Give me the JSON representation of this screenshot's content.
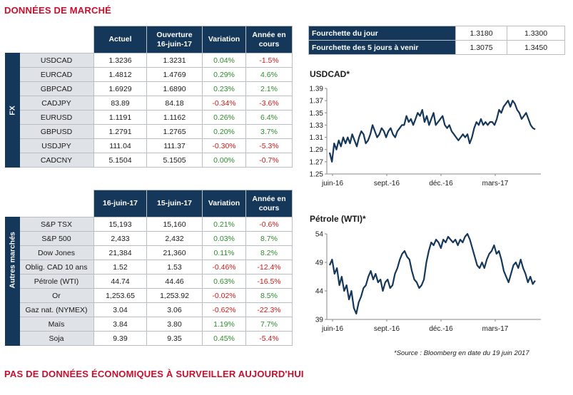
{
  "titles": {
    "top": "DONNÉES DE MARCHÉ",
    "bottom": "PAS DE DONNÉES ÉCONOMIQUES À SURVEILLER AUJOURD'HUI"
  },
  "fx": {
    "side_label": "FX",
    "headers": [
      "Actuel",
      "Ouverture\n16-juin-17",
      "Variation",
      "Année en\ncours"
    ],
    "rows": [
      {
        "name": "USDCAD",
        "actuel": "1.3236",
        "ouverture": "1.3231",
        "variation": "0.04%",
        "annee": "-1.5%"
      },
      {
        "name": "EURCAD",
        "actuel": "1.4812",
        "ouverture": "1.4769",
        "variation": "0.29%",
        "annee": "4.6%"
      },
      {
        "name": "GBPCAD",
        "actuel": "1.6929",
        "ouverture": "1.6890",
        "variation": "0.23%",
        "annee": "2.1%"
      },
      {
        "name": "CADJPY",
        "actuel": "83.89",
        "ouverture": "84.18",
        "variation": "-0.34%",
        "annee": "-3.6%"
      },
      {
        "name": "EURUSD",
        "actuel": "1.1191",
        "ouverture": "1.1162",
        "variation": "0.26%",
        "annee": "6.4%"
      },
      {
        "name": "GBPUSD",
        "actuel": "1.2791",
        "ouverture": "1.2765",
        "variation": "0.20%",
        "annee": "3.7%"
      },
      {
        "name": "USDJPY",
        "actuel": "111.04",
        "ouverture": "111.37",
        "variation": "-0.30%",
        "annee": "-5.3%"
      },
      {
        "name": "CADCNY",
        "actuel": "5.1504",
        "ouverture": "5.1505",
        "variation": "0.00%",
        "annee": "-0.7%"
      }
    ]
  },
  "other": {
    "side_label": "Autres marchés",
    "headers": [
      "16-juin-17",
      "15-juin-17",
      "Variation",
      "Année en\ncours"
    ],
    "rows": [
      {
        "name": "S&P TSX",
        "c1": "15,193",
        "c2": "15,160",
        "variation": "0.21%",
        "annee": "-0.6%"
      },
      {
        "name": "S&P 500",
        "c1": "2,433",
        "c2": "2,432",
        "variation": "0.03%",
        "annee": "8.7%"
      },
      {
        "name": "Dow Jones",
        "c1": "21,384",
        "c2": "21,360",
        "variation": "0.11%",
        "annee": "8.2%"
      },
      {
        "name": "Oblig. CAD 10 ans",
        "c1": "1.52",
        "c2": "1.53",
        "variation": "-0.46%",
        "annee": "-12.4%"
      },
      {
        "name": "Pétrole (WTI)",
        "c1": "44.74",
        "c2": "44.46",
        "variation": "0.63%",
        "annee": "-16.5%"
      },
      {
        "name": "Or",
        "c1": "1,253.65",
        "c2": "1,253.92",
        "variation": "-0.02%",
        "annee": "8.5%"
      },
      {
        "name": "Gaz nat. (NYMEX)",
        "c1": "3.04",
        "c2": "3.06",
        "variation": "-0.62%",
        "annee": "-22.3%"
      },
      {
        "name": "Maïs",
        "c1": "3.84",
        "c2": "3.80",
        "variation": "1.19%",
        "annee": "7.7%"
      },
      {
        "name": "Soja",
        "c1": "9.39",
        "c2": "9.35",
        "variation": "0.45%",
        "annee": "-5.4%"
      }
    ]
  },
  "range": [
    {
      "label": "Fourchette du jour",
      "low": "1.3180",
      "high": "1.3300"
    },
    {
      "label": "Fourchette des 5 jours à venir",
      "low": "1.3075",
      "high": "1.3450"
    }
  ],
  "chart_data": [
    {
      "type": "line",
      "title": "USDCAD*",
      "xlabel": "",
      "ylabel": "",
      "xticks": [
        "juin-16",
        "sept.-16",
        "déc.-16",
        "mars-17"
      ],
      "yticks": [
        1.25,
        1.27,
        1.29,
        1.31,
        1.33,
        1.35,
        1.37,
        1.39
      ],
      "ylim": [
        1.25,
        1.39
      ],
      "color": "#14375a",
      "series": [
        {
          "values": [
            1.285,
            1.27,
            1.3,
            1.29,
            1.305,
            1.295,
            1.31,
            1.3,
            1.31,
            1.3,
            1.315,
            1.305,
            1.295,
            1.31,
            1.32,
            1.315,
            1.3,
            1.305,
            1.315,
            1.33,
            1.32,
            1.31,
            1.315,
            1.325,
            1.32,
            1.31,
            1.32,
            1.325,
            1.315,
            1.31,
            1.32,
            1.325,
            1.33,
            1.33,
            1.345,
            1.335,
            1.34,
            1.33,
            1.34,
            1.35,
            1.345,
            1.355,
            1.335,
            1.345,
            1.33,
            1.34,
            1.35,
            1.33,
            1.335,
            1.34,
            1.345,
            1.33,
            1.325,
            1.33,
            1.32,
            1.315,
            1.31,
            1.305,
            1.31,
            1.315,
            1.31,
            1.315,
            1.3,
            1.31,
            1.325,
            1.335,
            1.33,
            1.34,
            1.33,
            1.335,
            1.33,
            1.335,
            1.335,
            1.33,
            1.34,
            1.355,
            1.35,
            1.36,
            1.365,
            1.37,
            1.36,
            1.37,
            1.365,
            1.355,
            1.35,
            1.34,
            1.345,
            1.35,
            1.34,
            1.33,
            1.325,
            1.323
          ]
        }
      ]
    },
    {
      "type": "line",
      "title": "Pétrole (WTI)*",
      "xlabel": "",
      "ylabel": "",
      "xticks": [
        "juin-16",
        "sept.-16",
        "déc.-16",
        "mars-17"
      ],
      "yticks": [
        39,
        44,
        49,
        54
      ],
      "ylim": [
        39,
        54
      ],
      "color": "#14375a",
      "series": [
        {
          "values": [
            48.5,
            49.5,
            47,
            48,
            45,
            46.5,
            44,
            45,
            42.5,
            44,
            41,
            40,
            42,
            43,
            44.5,
            45,
            46.5,
            47.5,
            46,
            47,
            45.5,
            46,
            44,
            45.5,
            46,
            44.5,
            45,
            47,
            48,
            49.5,
            50.5,
            51,
            50,
            49.5,
            47.5,
            46,
            45.5,
            44.5,
            45,
            46,
            49,
            51,
            52.5,
            52,
            53,
            52.5,
            51.5,
            53,
            52.5,
            53.5,
            53,
            52.5,
            53,
            52,
            53,
            52.5,
            53.5,
            54,
            53,
            51.5,
            50,
            48.5,
            48,
            49,
            48,
            49.5,
            50.5,
            51,
            52,
            50.5,
            51,
            49.5,
            47.5,
            46.5,
            45.5,
            47,
            48.5,
            49,
            48,
            49.5,
            48,
            47,
            45.5,
            46.5,
            45.2,
            45.8
          ]
        }
      ]
    }
  ],
  "source_note": "*Source : Bloomberg en date du  19 juin 2017"
}
